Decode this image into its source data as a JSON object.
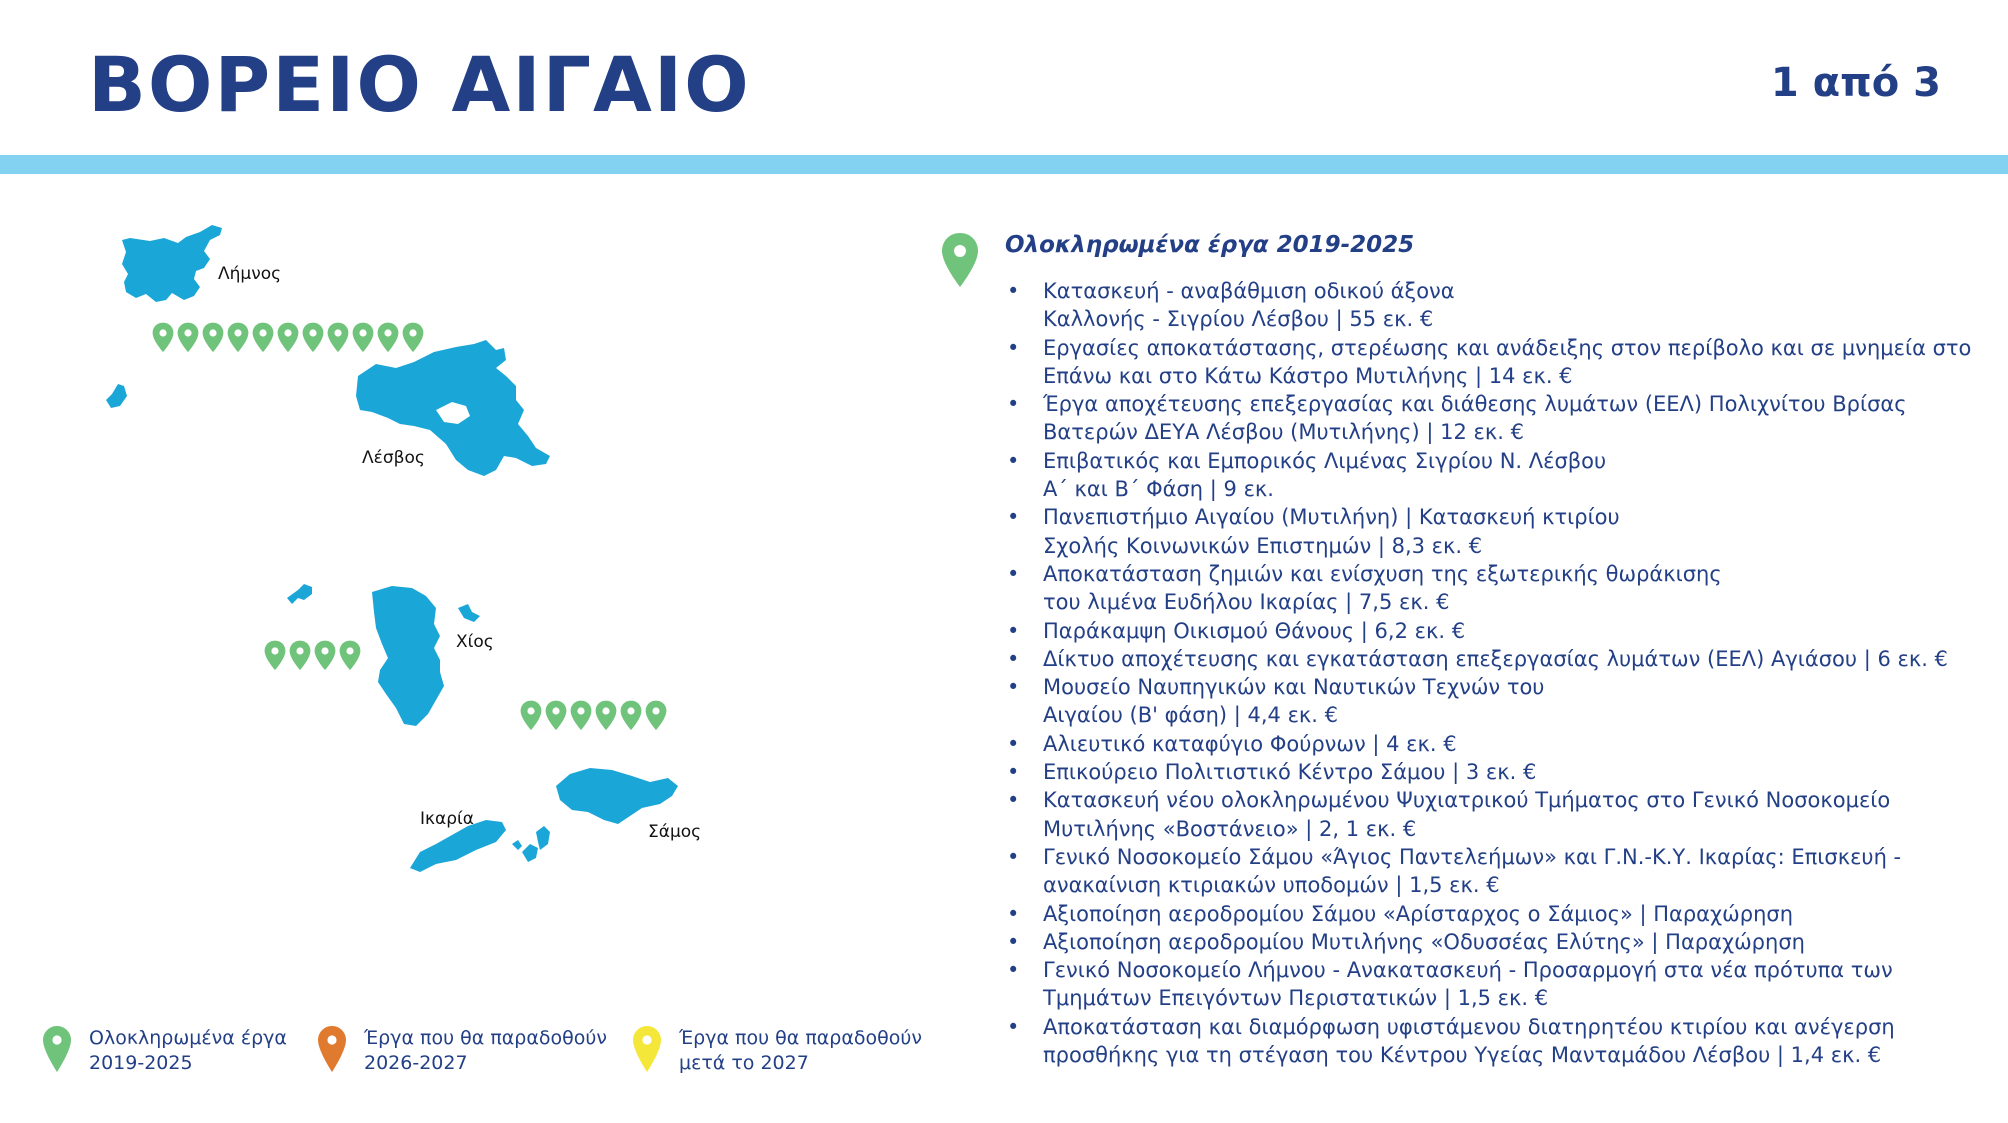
{
  "header": {
    "title": "ΒΟΡΕΙΟ ΑΙΓΑΙΟ",
    "page_indicator": "1 από 3"
  },
  "colors": {
    "title": "#233f86",
    "band": "#84d2f2",
    "island": "#1ba6d8",
    "pin_completed": "#6fc37a",
    "pin_2026_2027": "#e07a2e",
    "pin_after_2027": "#f5e73a"
  },
  "map": {
    "islands": [
      {
        "name": "Λήμνος",
        "completed_projects": 11
      },
      {
        "name": "Λέσβος"
      },
      {
        "name": "Χίος",
        "completed_projects": 4
      },
      {
        "name": "Ικαρία"
      },
      {
        "name": "Σάμος",
        "completed_projects": 6
      }
    ]
  },
  "projects": {
    "heading": "Ολοκληρωμένα έργα 2019-2025",
    "heading_icon": "green-map-pin-icon",
    "items": [
      "Κατασκευή - αναβάθμιση οδικού άξονα\nΚαλλονής - Σιγρίου Λέσβου | 55 εκ. €",
      "Εργασίες αποκατάστασης, στερέωσης και ανάδειξης στον περίβολο και σε μνημεία στο\nΕπάνω και στο Κάτω Κάστρο Μυτιλήνης | 14 εκ. €",
      "Έργα αποχέτευσης επεξεργασίας και διάθεσης λυμάτων (ΕΕΛ) Πολιχνίτου Βρίσας\nΒατερών ΔΕΥΑ Λέσβου (Μυτιλήνης) | 12 εκ. €",
      "Επιβατικός και Εμπορικός Λιμένας Σιγρίου Ν. Λέσβου\nΑ΄ και Β΄ Φάση | 9 εκ.",
      "Πανεπιστήμιο Αιγαίου (Μυτιλήνη) | Κατασκευή κτιρίου\nΣχολής Κοινωνικών Επιστημών | 8,3 εκ. €",
      "Αποκατάσταση ζημιών και ενίσχυση της εξωτερικής θωράκισης\nτου λιμένα Ευδήλου Ικαρίας | 7,5 εκ. €",
      "Παράκαμψη Οικισμού Θάνους | 6,2 εκ. €",
      "Δίκτυο αποχέτευσης και εγκατάσταση επεξεργασίας λυμάτων (ΕΕΛ) Αγιάσου | 6 εκ. €",
      "Μουσείο Ναυπηγικών και Ναυτικών Τεχνών του\nΑιγαίου (Β' φάση) | 4,4 εκ. €",
      "Αλιευτικό καταφύγιο Φούρνων | 4 εκ. €",
      "Επικούρειο Πολιτιστικό Κέντρο Σάμου | 3 εκ. €",
      "Κατασκευή νέου ολοκληρωμένου Ψυχιατρικού Τμήματος στο Γενικό Νοσοκομείο\nΜυτιλήνης «Βοστάνειο» | 2, 1 εκ. €",
      "Γενικό Νοσοκομείο Σάμου «Άγιος Παντελεήμων» και Γ.Ν.-Κ.Υ. Ικαρίας: Επισκευή -\nανακαίνιση κτιριακών υποδομών | 1,5 εκ. €",
      "Αξιοποίηση αεροδρομίου Σάμου «Αρίσταρχος ο Σάμιος» | Παραχώρηση",
      "Αξιοποίηση αεροδρομίου Μυτιλήνης «Οδυσσέας Ελύτης» | Παραχώρηση",
      "Γενικό Νοσοκομείο Λήμνου - Ανακατασκευή - Προσαρμογή στα νέα πρότυπα των\nΤμημάτων Επειγόντων Περιστατικών | 1,5 εκ. €",
      "Αποκατάσταση και διαμόρφωση υφιστάμενου διατηρητέου κτιρίου και ανέγερση\nπροσθήκης για τη στέγαση του Κέντρου Υγείας Μανταμάδου Λέσβου | 1,4 εκ. €"
    ]
  },
  "legend": [
    {
      "label": "Ολοκληρωμένα έργα\n2019-2025",
      "icon": "green-map-pin-icon"
    },
    {
      "label": "Έργα που θα παραδοθούν\n2026-2027",
      "icon": "orange-map-pin-icon"
    },
    {
      "label": "Έργα που θα παραδοθούν\nμετά το 2027",
      "icon": "yellow-map-pin-icon"
    }
  ]
}
